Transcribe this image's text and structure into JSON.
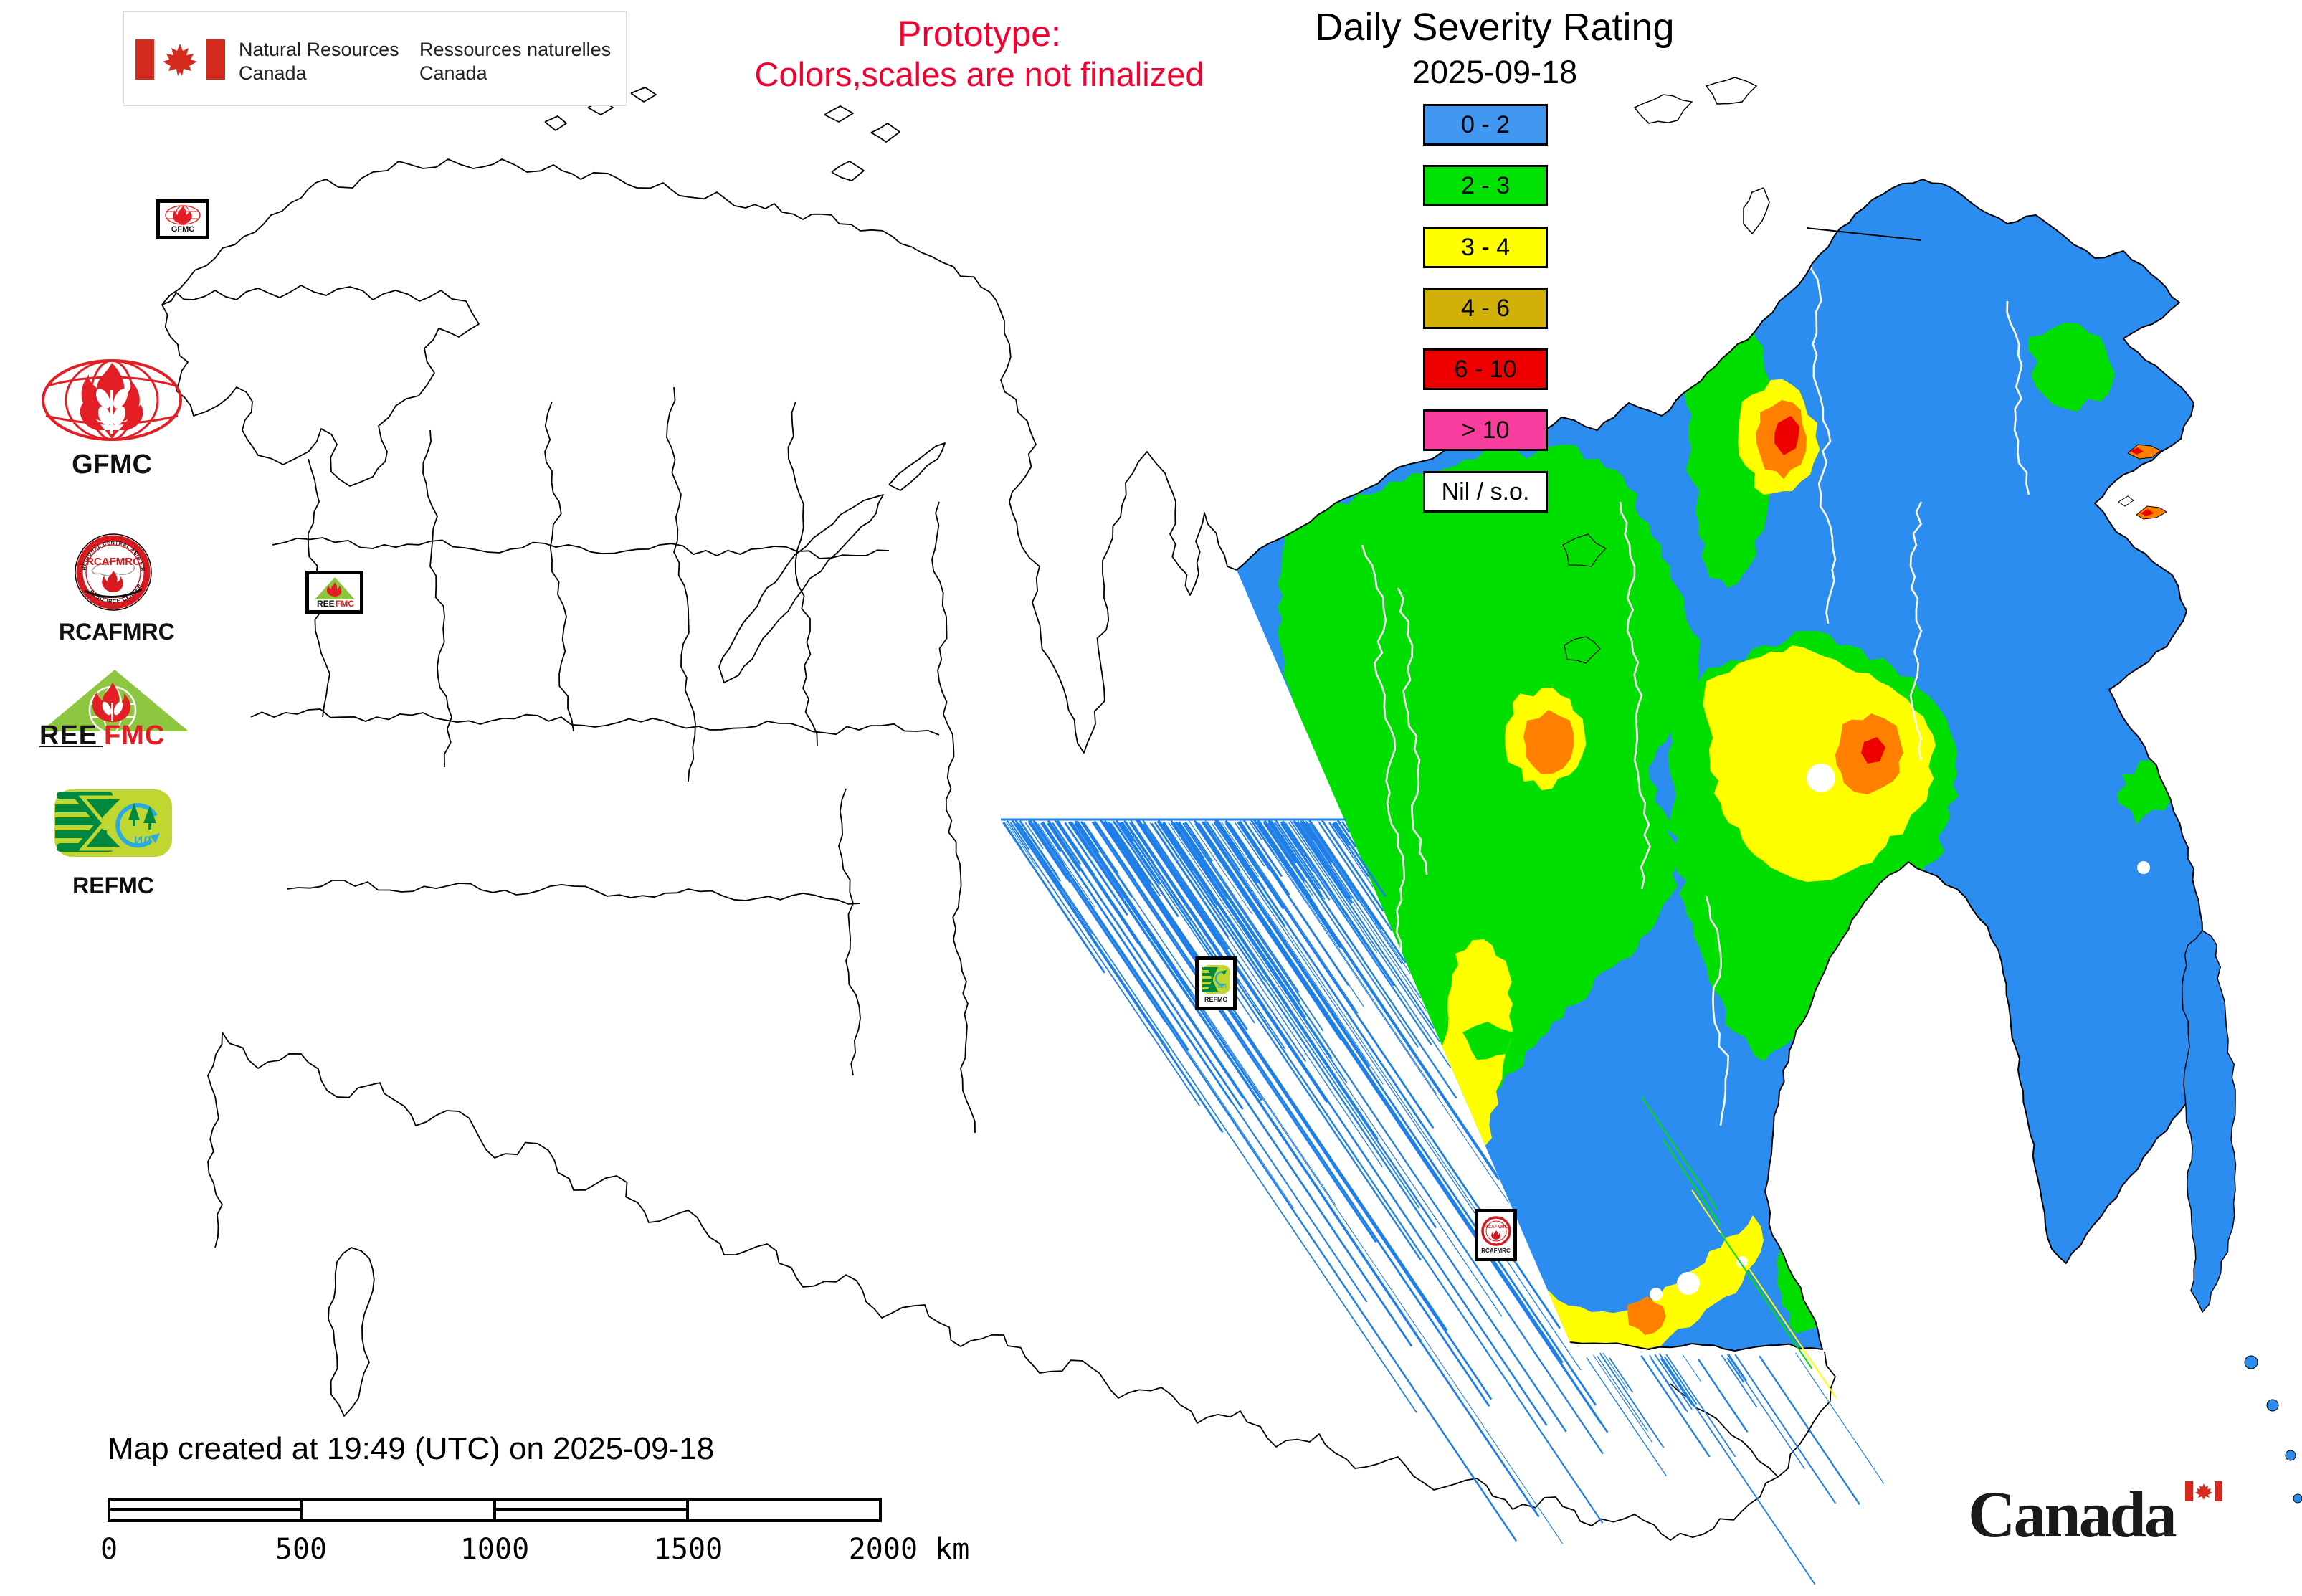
{
  "header": {
    "nrcan_en_1": "Natural Resources",
    "nrcan_en_2": "Canada",
    "nrcan_fr_1": "Ressources naturelles",
    "nrcan_fr_2": "Canada",
    "prototype_1": "Prototype:",
    "prototype_2": "Colors,scales are not finalized",
    "title": "Daily Severity Rating",
    "date": "2025-09-18"
  },
  "legend": {
    "items": [
      {
        "label": "0 - 2",
        "color": "#4098F0"
      },
      {
        "label": "2 - 3",
        "color": "#00E104"
      },
      {
        "label": "3 - 4",
        "color": "#FFFF00"
      },
      {
        "label": "4 - 6",
        "color": "#D1B106"
      },
      {
        "label": "6 - 10",
        "color": "#EF0000"
      },
      {
        "label": "> 10",
        "color": "#F93D9E"
      },
      {
        "label": "Nil / s.o.",
        "color": "#FFFFFF"
      }
    ]
  },
  "logos": {
    "gfmc_label": "GFMC",
    "rcafmrc_label": "RCAFMRC",
    "rcafmrc_ring_top": "REGIONAL CENTRAL ASIA FIRE MANAGEMENT",
    "rcafmrc_ring_bottom": "RESOURCE CENTER",
    "rcafmrc_inner": "RCAFMRC",
    "reefmc_black": "REE",
    "reefmc_red": "FMC",
    "refmc_label": "REFMC",
    "refmc_inner": "ИЛ"
  },
  "markers": {
    "gfmc": "GFMC",
    "reefmc_black": "REE",
    "reefmc_red": "FMC",
    "refmc": "REFMC",
    "rcafmrc": "RCAFMRC"
  },
  "footer": {
    "created": "Map created at 19:49 (UTC) on 2025-09-18",
    "scale_labels": [
      "0",
      "500",
      "1000",
      "1500",
      "2000 km"
    ]
  },
  "wordmark": "Canada",
  "colors": {
    "sev_low": "#2B8DF0",
    "sev_green": "#00DF00",
    "sev_yellow": "#FFFF00",
    "sev_orange": "#FF7F00",
    "sev_red": "#EE0000",
    "outline": "#000000",
    "river": "#FFFFFF",
    "streak": "#1F7FE8",
    "logo_red": "#E31E24",
    "tri_green": "#8DC63F",
    "ref_dark": "#00883F",
    "ref_light": "#BFD730",
    "ref_blue": "#29ABE2"
  }
}
